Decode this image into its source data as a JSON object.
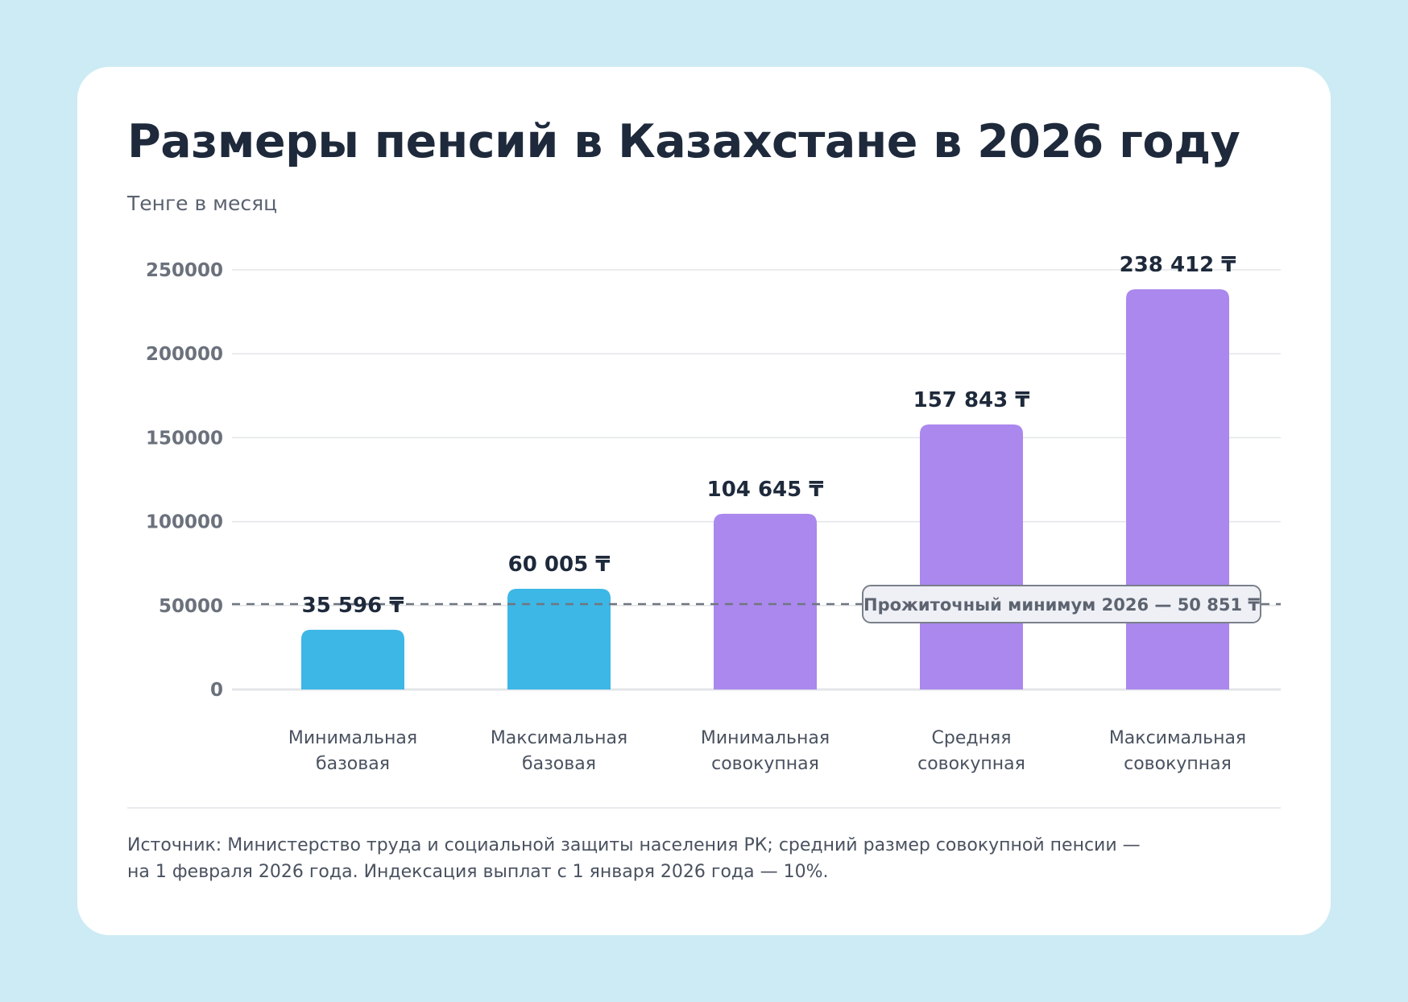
{
  "colors": {
    "background": "#cdebf4",
    "card": "#ffffff",
    "blue": "#3db7e6",
    "purple": "#aa88ee",
    "grid": "#e3e5e8",
    "text_dark": "#1e2a3b",
    "text_muted": "#6b717c"
  },
  "chart_data": {
    "type": "bar",
    "title": "Размеры пенсий в Казахстане в 2026 году",
    "subtitle": "Тенге в месяц",
    "categories": [
      [
        "Минимальная",
        "базовая"
      ],
      [
        "Максимальная",
        "базовая"
      ],
      [
        "Минимальная",
        "совокупная"
      ],
      [
        "Средняя",
        "совокупная"
      ],
      [
        "Максимальная",
        "совокупная"
      ]
    ],
    "values": [
      35596,
      60005,
      104645,
      157843,
      238412
    ],
    "value_labels": [
      "35 596 ₸",
      "60 005 ₸",
      "104 645 ₸",
      "157 843 ₸",
      "238 412 ₸"
    ],
    "bar_colors": [
      "#3db7e6",
      "#3db7e6",
      "#aa88ee",
      "#aa88ee",
      "#aa88ee"
    ],
    "y_ticks": [
      0,
      50000,
      100000,
      150000,
      200000,
      250000
    ],
    "y_tick_labels": [
      "0",
      "50000",
      "100000",
      "150000",
      "200000",
      "250000"
    ],
    "ylim": [
      0,
      250000
    ],
    "grid": true,
    "reference_line": {
      "value": 50851,
      "label": "Прожиточный минимум 2026 — 50 851 ₸"
    }
  },
  "source_lines": [
    "Источник: Министерство труда и социальной защиты населения РК; средний размер совокупной пенсии —",
    "на 1 февраля 2026 года. Индексация выплат с 1 января 2026 года — 10%."
  ]
}
